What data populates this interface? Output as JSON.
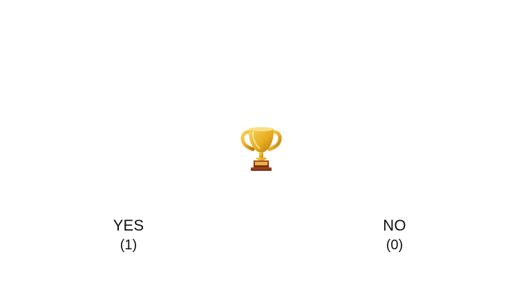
{
  "trophy": {
    "icon": "trophy-icon",
    "colors": {
      "gold_light": "#f7d35a",
      "gold": "#e6ad1f",
      "gold_dark": "#b97810",
      "base_wood": "#9b3d17",
      "base_wood_dark": "#6d2a10"
    }
  },
  "options": {
    "yes": {
      "label": "YES",
      "count": "(1)"
    },
    "no": {
      "label": "NO",
      "count": "(0)"
    }
  }
}
